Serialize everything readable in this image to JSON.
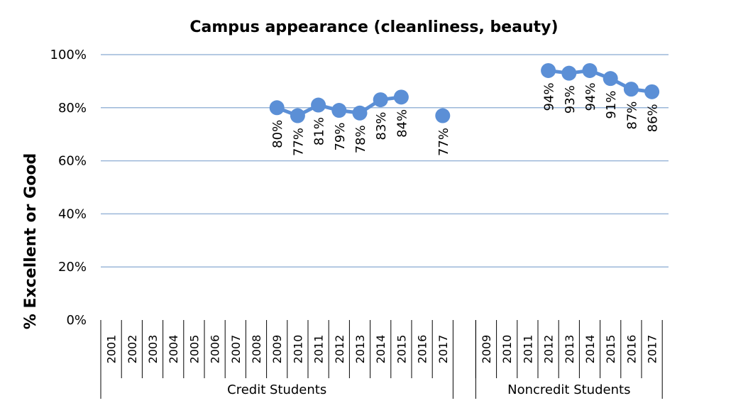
{
  "chart_data": {
    "type": "line",
    "title": "Campus appearance (cleanliness, beauty)",
    "ylabel": "% Excellent or Good",
    "xlabel": "",
    "ylim": [
      0,
      100
    ],
    "y_ticks": [
      "0%",
      "20%",
      "40%",
      "60%",
      "80%",
      "100%"
    ],
    "grid": true,
    "legend": "none",
    "series_color": "#5b8fd6",
    "groups": [
      {
        "name": "Credit Students",
        "categories": [
          "2001",
          "2002",
          "2003",
          "2004",
          "2005",
          "2006",
          "2007",
          "2008",
          "2009",
          "2010",
          "2011",
          "2012",
          "2013",
          "2014",
          "2015",
          "2016",
          "2017"
        ],
        "values": [
          null,
          null,
          null,
          null,
          null,
          null,
          null,
          null,
          80,
          77,
          81,
          79,
          78,
          83,
          84,
          null,
          77
        ],
        "labels": [
          "",
          "",
          "",
          "",
          "",
          "",
          "",
          "",
          "80%",
          "77%",
          "81%",
          "79%",
          "78%",
          "83%",
          "84%",
          "",
          "77%"
        ]
      },
      {
        "name": "Noncredit Students",
        "categories": [
          "2009",
          "2010",
          "2011",
          "2012",
          "2013",
          "2014",
          "2015",
          "2016",
          "2017"
        ],
        "values": [
          null,
          null,
          null,
          94,
          93,
          94,
          91,
          87,
          86
        ],
        "labels": [
          "",
          "",
          "",
          "94%",
          "93%",
          "94%",
          "91%",
          "87%",
          "86%"
        ]
      }
    ]
  }
}
